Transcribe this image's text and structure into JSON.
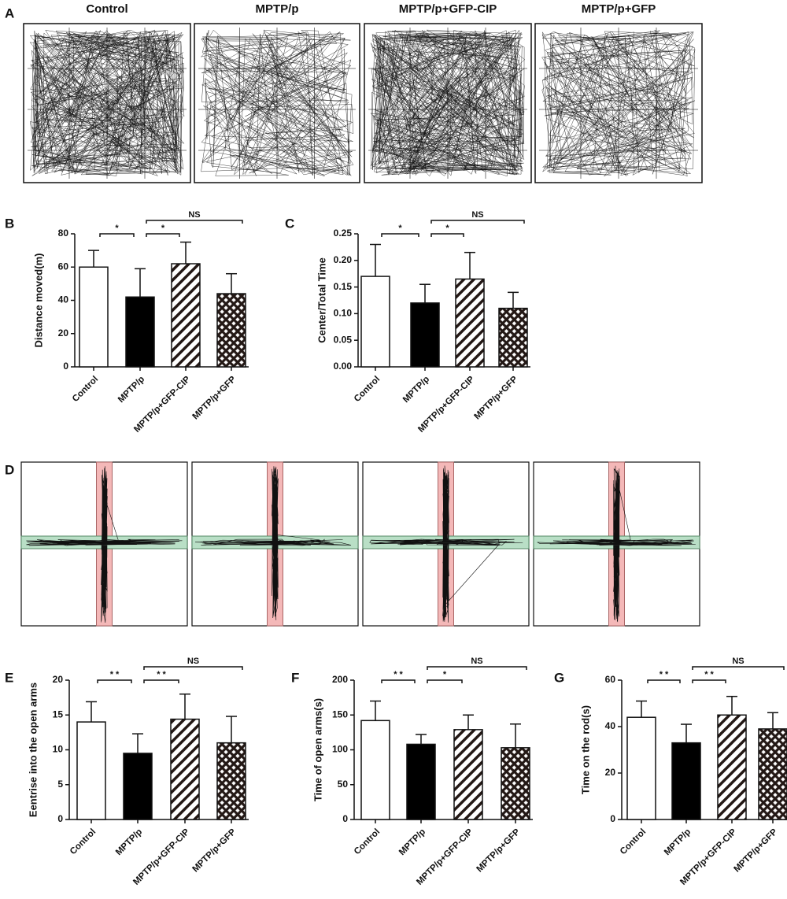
{
  "panels": {
    "A": {
      "label": "A",
      "titles": [
        "Control",
        "MPTP/p",
        "MPTP/p+GFP-CIP",
        "MPTP/p+GFP"
      ]
    },
    "D": {
      "label": "D"
    }
  },
  "chart_data": [
    {
      "label": "B",
      "type": "bar",
      "y_label": "Distance moved(m)",
      "categories": [
        "Control",
        "MPTP/p",
        "MPTP/p+GFP-CIP",
        "MPTP/p+GFP"
      ],
      "values": [
        60,
        42,
        62,
        44
      ],
      "errors": [
        10,
        17,
        13,
        12
      ],
      "fills": [
        "open",
        "solid",
        "hatch",
        "crosshatch"
      ],
      "color": "#231815",
      "ylim": [
        0,
        80
      ],
      "yticks": [
        0,
        20,
        40,
        60,
        80
      ],
      "annotations": [
        {
          "text": "*",
          "from": 0,
          "to": 1
        },
        {
          "text": "*",
          "from": 1,
          "to": 2
        },
        {
          "text": "NS",
          "from": 1,
          "to": 3
        }
      ]
    },
    {
      "label": "C",
      "type": "bar",
      "y_label": "Center/Total Time",
      "categories": [
        "Control",
        "MPTP/p",
        "MPTP/p+GFP-CIP",
        "MPTP/p+GFP"
      ],
      "values": [
        0.17,
        0.12,
        0.165,
        0.11
      ],
      "errors": [
        0.06,
        0.035,
        0.05,
        0.03
      ],
      "fills": [
        "open",
        "solid",
        "hatch",
        "crosshatch"
      ],
      "color": "#231815",
      "ylim": [
        0,
        0.25
      ],
      "yticks": [
        {
          "value": 0,
          "label": "0.00"
        },
        {
          "value": 0.05,
          "label": "0.05"
        },
        {
          "value": 0.1,
          "label": "0.10"
        },
        {
          "value": 0.15,
          "label": "0.15"
        },
        {
          "value": 0.2,
          "label": "0.20"
        },
        {
          "value": 0.25,
          "label": "0.25"
        }
      ],
      "annotations": [
        {
          "text": "*",
          "from": 0,
          "to": 1
        },
        {
          "text": "*",
          "from": 1,
          "to": 2
        },
        {
          "text": "NS",
          "from": 1,
          "to": 3
        }
      ]
    },
    {
      "label": "E",
      "type": "bar",
      "y_label": "Eentrise into the open arms",
      "categories": [
        "Control",
        "MPTP/p",
        "MPTP/p+GFP-CIP",
        "MPTP/p+GFP"
      ],
      "values": [
        14,
        9.5,
        14.4,
        11
      ],
      "errors": [
        2.9,
        2.8,
        3.6,
        3.8
      ],
      "fills": [
        "open",
        "solid",
        "hatch",
        "crosshatch"
      ],
      "color": "#231815",
      "ylim": [
        0,
        20
      ],
      "yticks": [
        0,
        5,
        10,
        15,
        20
      ],
      "annotations": [
        {
          "text": "* *",
          "from": 0,
          "to": 1
        },
        {
          "text": "* *",
          "from": 1,
          "to": 2
        },
        {
          "text": "NS",
          "from": 1,
          "to": 3
        }
      ]
    },
    {
      "label": "F",
      "type": "bar",
      "y_label": "Time of open arms(s)",
      "categories": [
        "Control",
        "MPTP/p",
        "MPTP/p+GFP-CIP",
        "MPTP/p+GFP"
      ],
      "values": [
        142,
        108,
        129,
        103
      ],
      "errors": [
        28,
        14,
        21,
        34
      ],
      "fills": [
        "open",
        "solid",
        "hatch",
        "crosshatch"
      ],
      "color": "#231815",
      "ylim": [
        0,
        200
      ],
      "yticks": [
        0,
        50,
        100,
        150,
        200
      ],
      "annotations": [
        {
          "text": "* *",
          "from": 0,
          "to": 1
        },
        {
          "text": "*",
          "from": 1,
          "to": 2
        },
        {
          "text": "NS",
          "from": 1,
          "to": 3
        }
      ]
    },
    {
      "label": "G",
      "type": "bar",
      "y_label": "Time on the rod(s)",
      "categories": [
        "Control",
        "MPTP/p",
        "MPTP/p+GFP-CIP",
        "MPTP/p+GFP"
      ],
      "values": [
        44,
        33,
        45,
        39
      ],
      "errors": [
        7,
        8,
        8,
        7
      ],
      "fills": [
        "open",
        "solid",
        "hatch",
        "crosshatch"
      ],
      "color": "#231815",
      "ylim": [
        0,
        60
      ],
      "yticks": [
        0,
        20,
        40,
        60
      ],
      "annotations": [
        {
          "text": "* *",
          "from": 0,
          "to": 1
        },
        {
          "text": "* *",
          "from": 1,
          "to": 2
        },
        {
          "text": "NS",
          "from": 1,
          "to": 3
        }
      ]
    }
  ]
}
